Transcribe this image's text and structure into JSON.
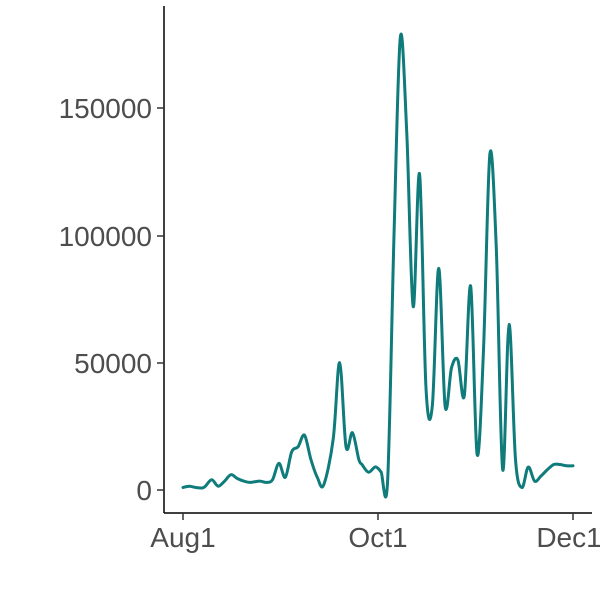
{
  "chart_data": {
    "type": "line",
    "title": "",
    "xlabel": "",
    "ylabel": "",
    "x_ticks": [
      "Aug1",
      "Oct1",
      "Dec1"
    ],
    "y_ticks": [
      "0",
      "50000",
      "100000",
      "150000"
    ],
    "xlim": [
      "2020-08-01",
      "2020-12-01"
    ],
    "ylim": [
      -8000,
      190000
    ],
    "grid": false,
    "legend": "none",
    "colors": {
      "line": "#0f7b7b",
      "axis": "#000000",
      "text": "#4d4d4d"
    },
    "series": [
      {
        "x": [
          "2020-08-01",
          "2020-08-03",
          "2020-08-05",
          "2020-08-07",
          "2020-08-08",
          "2020-08-10",
          "2020-08-12",
          "2020-08-14",
          "2020-08-16",
          "2020-08-18",
          "2020-08-20",
          "2020-08-22",
          "2020-08-25",
          "2020-08-27",
          "2020-08-29",
          "2020-08-31",
          "2020-09-02",
          "2020-09-04",
          "2020-09-06",
          "2020-09-08",
          "2020-09-10",
          "2020-09-12",
          "2020-09-14",
          "2020-09-17",
          "2020-09-19",
          "2020-09-21",
          "2020-09-23",
          "2020-09-25",
          "2020-09-26",
          "2020-09-28",
          "2020-09-30",
          "2020-10-01",
          "2020-10-02",
          "2020-10-04",
          "2020-10-06",
          "2020-10-08",
          "2020-10-10",
          "2020-10-12",
          "2020-10-14",
          "2020-10-16",
          "2020-10-18",
          "2020-10-20",
          "2020-10-22",
          "2020-10-24",
          "2020-10-26",
          "2020-10-28",
          "2020-10-30",
          "2020-11-01",
          "2020-11-03",
          "2020-11-05",
          "2020-11-07",
          "2020-11-09",
          "2020-11-11",
          "2020-11-13",
          "2020-11-15",
          "2020-11-17",
          "2020-11-19",
          "2020-11-21",
          "2020-11-23",
          "2020-11-25",
          "2020-11-27",
          "2020-11-29",
          "2020-12-01"
        ],
        "y": [
          1000,
          1500,
          1000,
          800,
          1500,
          4000,
          1500,
          3500,
          6000,
          4500,
          3500,
          3000,
          3500,
          3000,
          4000,
          10500,
          5000,
          15000,
          17000,
          21500,
          12000,
          5000,
          2000,
          20000,
          50000,
          17000,
          22500,
          12000,
          10000,
          7000,
          9000,
          8500,
          7000,
          3500,
          100000,
          178000,
          140000,
          72000,
          124000,
          40000,
          33000,
          87000,
          33000,
          48000,
          51000,
          37000,
          80000,
          14000,
          55000,
          132000,
          95000,
          8000,
          65000,
          12000,
          1000,
          9000,
          3500,
          5500,
          8000,
          10000,
          10000,
          9500,
          9500
        ]
      }
    ]
  }
}
